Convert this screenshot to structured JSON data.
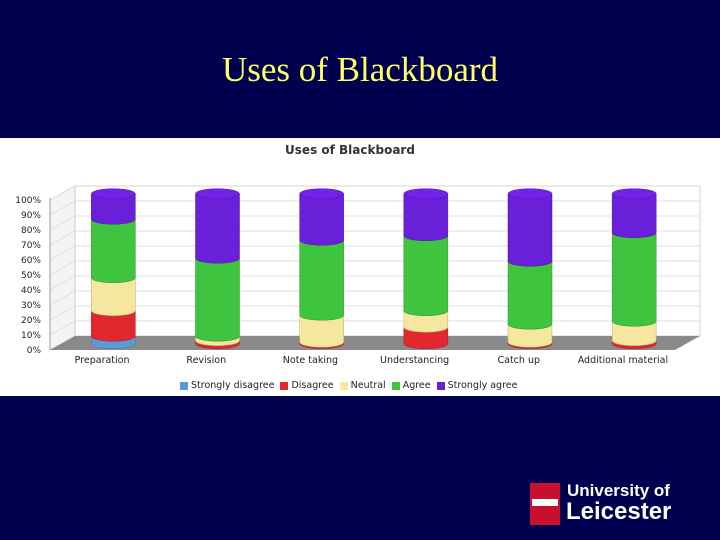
{
  "slide": {
    "title": "Uses of Blackboard"
  },
  "logo": {
    "line1": "University of",
    "line2": "Leicester"
  },
  "colors": {
    "background": "#00004f",
    "title": "#ffff66",
    "Strongly disagree": "#5b9bd5",
    "Disagree": "#e0282e",
    "Neutral": "#f5e79e",
    "Agree": "#3ec43e",
    "Strongly agree": "#6a1fd8"
  },
  "chart_data": {
    "type": "bar",
    "stacked": true,
    "title": "Uses of Blackboard",
    "xlabel": "",
    "ylabel": "",
    "ylim": [
      0,
      100
    ],
    "yticks": [
      "0%",
      "10%",
      "20%",
      "30%",
      "40%",
      "50%",
      "60%",
      "70%",
      "80%",
      "90%",
      "100%"
    ],
    "grid": true,
    "legend_position": "bottom",
    "categories": [
      "Preparation",
      "Revision",
      "Note taking",
      "Understancing",
      "Catch up",
      "Additional material"
    ],
    "series": [
      {
        "name": "Strongly disagree",
        "values": [
          5,
          0,
          0,
          0,
          0,
          0
        ]
      },
      {
        "name": "Disagree",
        "values": [
          17,
          2,
          1,
          11,
          1,
          2
        ]
      },
      {
        "name": "Neutral",
        "values": [
          22,
          3,
          18,
          11,
          12,
          13
        ]
      },
      {
        "name": "Agree",
        "values": [
          39,
          52,
          50,
          50,
          42,
          59
        ]
      },
      {
        "name": "Strongly agree",
        "values": [
          17,
          43,
          31,
          28,
          45,
          26
        ]
      }
    ]
  }
}
